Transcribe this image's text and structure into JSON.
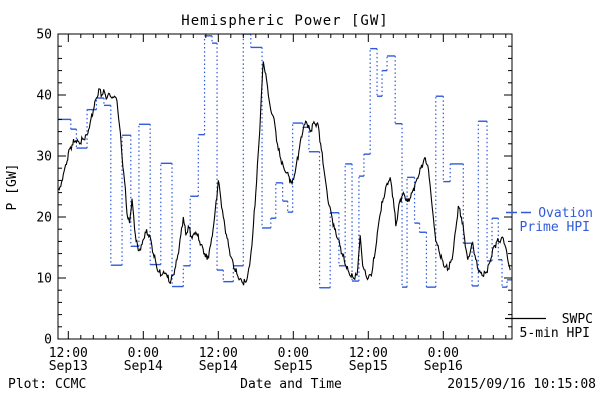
{
  "figure": {
    "title": "Hemispheric Power [GW]",
    "xlabel": "Date and Time",
    "ylabel": "P [GW]",
    "footer_left": "Plot: CCMC",
    "footer_right": "2015/09/16 10:15:08"
  },
  "legend": {
    "ovation_line1": "Ovation",
    "ovation_line2": "Prime HPI",
    "swpc_line1": "SWPC",
    "swpc_line2": "5-min HPI"
  },
  "colors": {
    "ovation": "#2f5bdb",
    "swpc": "#000000",
    "frame": "#000000",
    "background": "#ffffff"
  },
  "chart_data": {
    "type": "line",
    "title": "Hemispheric Power [GW]",
    "xlabel": "Date and Time",
    "ylabel": "P [GW]",
    "ylim": [
      0,
      50
    ],
    "y_major_ticks": [
      0,
      10,
      20,
      30,
      40,
      50
    ],
    "y_minor_step": 2,
    "x_unit": "hours since 2015-09-13 12:00",
    "xlim": [
      -1.6,
      71.0
    ],
    "x_major_ticks": [
      {
        "t": 0,
        "time": "12:00",
        "date": "Sep13"
      },
      {
        "t": 12,
        "time": "0:00",
        "date": "Sep14"
      },
      {
        "t": 24,
        "time": "12:00",
        "date": "Sep14"
      },
      {
        "t": 36,
        "time": "0:00",
        "date": "Sep15"
      },
      {
        "t": 48,
        "time": "12:00",
        "date": "Sep15"
      },
      {
        "t": 60,
        "time": "0:00",
        "date": "Sep16"
      }
    ],
    "x_minor_step_hours": 2,
    "grid": false,
    "legend_position": "right-outside",
    "series": [
      {
        "name": "Ovation Prime HPI",
        "style": "step-dotted",
        "color": "#2f5bdb",
        "steps_t0_t1_gw": [
          [
            -1.6,
            0.4,
            36.0
          ],
          [
            0.4,
            1.3,
            34.4
          ],
          [
            1.3,
            3.0,
            31.3
          ],
          [
            3.0,
            4.5,
            37.6
          ],
          [
            4.5,
            5.7,
            39.5
          ],
          [
            5.7,
            6.8,
            38.3
          ],
          [
            6.8,
            8.6,
            12.1
          ],
          [
            8.6,
            10.0,
            33.4
          ],
          [
            10.0,
            11.3,
            15.2
          ],
          [
            11.3,
            13.1,
            35.2
          ],
          [
            13.1,
            14.8,
            12.2
          ],
          [
            14.8,
            16.6,
            28.8
          ],
          [
            16.6,
            18.4,
            8.6
          ],
          [
            18.4,
            19.5,
            12.0
          ],
          [
            19.5,
            20.8,
            23.4
          ],
          [
            20.8,
            21.8,
            33.5
          ],
          [
            21.8,
            23.0,
            49.7
          ],
          [
            23.0,
            23.8,
            48.5
          ],
          [
            23.8,
            24.8,
            11.3
          ],
          [
            24.8,
            26.4,
            9.4
          ],
          [
            26.4,
            28.0,
            12.0
          ],
          [
            28.0,
            29.2,
            50.0
          ],
          [
            29.2,
            31.0,
            47.8
          ],
          [
            31.0,
            32.4,
            18.2
          ],
          [
            32.4,
            33.2,
            19.8
          ],
          [
            33.2,
            34.3,
            25.6
          ],
          [
            34.3,
            35.1,
            22.6
          ],
          [
            35.1,
            35.9,
            20.8
          ],
          [
            35.9,
            37.5,
            35.4
          ],
          [
            37.5,
            38.5,
            34.7
          ],
          [
            38.5,
            40.2,
            30.7
          ],
          [
            40.2,
            41.9,
            8.4
          ],
          [
            41.9,
            43.3,
            20.7
          ],
          [
            43.3,
            44.3,
            12.0
          ],
          [
            44.3,
            45.4,
            28.7
          ],
          [
            45.4,
            46.5,
            9.5
          ],
          [
            46.5,
            47.3,
            26.7
          ],
          [
            47.3,
            48.3,
            30.3
          ],
          [
            48.3,
            49.4,
            47.6
          ],
          [
            49.4,
            50.2,
            39.8
          ],
          [
            50.2,
            51.0,
            44.0
          ],
          [
            51.0,
            52.3,
            46.4
          ],
          [
            52.3,
            53.4,
            35.3
          ],
          [
            53.4,
            54.2,
            8.5
          ],
          [
            54.2,
            55.4,
            26.5
          ],
          [
            55.4,
            56.2,
            19.0
          ],
          [
            56.2,
            57.3,
            17.5
          ],
          [
            57.3,
            58.8,
            8.5
          ],
          [
            58.8,
            60.0,
            39.8
          ],
          [
            60.0,
            61.1,
            25.8
          ],
          [
            61.1,
            63.2,
            28.7
          ],
          [
            63.2,
            64.6,
            15.7
          ],
          [
            64.6,
            65.6,
            8.7
          ],
          [
            65.6,
            67.0,
            35.7
          ],
          [
            67.0,
            67.8,
            12.8
          ],
          [
            67.8,
            68.8,
            19.8
          ],
          [
            68.8,
            69.4,
            13.0
          ],
          [
            69.4,
            70.2,
            8.5
          ],
          [
            70.2,
            71.0,
            9.7
          ]
        ]
      },
      {
        "name": "SWPC 5-min HPI",
        "style": "solid",
        "color": "#000000",
        "points_t_gw": [
          [
            -1.6,
            24.6
          ],
          [
            -1.2,
            25.0
          ],
          [
            -0.8,
            27.0
          ],
          [
            -0.3,
            28.6
          ],
          [
            0,
            30.5
          ],
          [
            0.6,
            31.8
          ],
          [
            1.2,
            32.5
          ],
          [
            1.8,
            32.0
          ],
          [
            2.4,
            32.8
          ],
          [
            3.0,
            33.5
          ],
          [
            3.5,
            35.5
          ],
          [
            4.0,
            37.5
          ],
          [
            4.5,
            39.5
          ],
          [
            5.0,
            41.0
          ],
          [
            5.4,
            40.0
          ],
          [
            5.8,
            40.5
          ],
          [
            6.2,
            39.5
          ],
          [
            6.6,
            40.2
          ],
          [
            7.0,
            39.5
          ],
          [
            7.4,
            39.8
          ],
          [
            7.8,
            39.0
          ],
          [
            8.2,
            35.0
          ],
          [
            8.6,
            30.0
          ],
          [
            9.0,
            26.0
          ],
          [
            9.4,
            20.5
          ],
          [
            9.8,
            19.0
          ],
          [
            10.2,
            23.0
          ],
          [
            10.6,
            18.0
          ],
          [
            11.2,
            14.5
          ],
          [
            11.8,
            15.5
          ],
          [
            12.3,
            17.5
          ],
          [
            13.0,
            17.0
          ],
          [
            13.6,
            14.0
          ],
          [
            14.4,
            11.0
          ],
          [
            15.0,
            10.5
          ],
          [
            15.6,
            10.8
          ],
          [
            16.2,
            9.2
          ],
          [
            16.8,
            10.5
          ],
          [
            17.4,
            13.0
          ],
          [
            18.0,
            17.0
          ],
          [
            18.4,
            20.0
          ],
          [
            18.8,
            17.0
          ],
          [
            19.2,
            18.5
          ],
          [
            19.8,
            16.5
          ],
          [
            20.4,
            17.5
          ],
          [
            21.0,
            16.0
          ],
          [
            21.8,
            14.0
          ],
          [
            22.2,
            13.0
          ],
          [
            22.8,
            15.5
          ],
          [
            23.4,
            20.0
          ],
          [
            24.0,
            26.0
          ],
          [
            24.4,
            23.0
          ],
          [
            24.8,
            20.0
          ],
          [
            25.4,
            16.5
          ],
          [
            26.0,
            13.5
          ],
          [
            26.6,
            11.5
          ],
          [
            27.2,
            10.0
          ],
          [
            27.8,
            9.3
          ],
          [
            28.4,
            9.3
          ],
          [
            29.0,
            12.0
          ],
          [
            29.5,
            17.0
          ],
          [
            30.0,
            24.0
          ],
          [
            30.5,
            32.0
          ],
          [
            30.9,
            40.0
          ],
          [
            31.2,
            45.5
          ],
          [
            31.6,
            43.5
          ],
          [
            32.0,
            40.0
          ],
          [
            32.4,
            37.5
          ],
          [
            32.8,
            36.5
          ],
          [
            33.2,
            34.0
          ],
          [
            33.6,
            31.0
          ],
          [
            34.0,
            29.5
          ],
          [
            34.5,
            28.0
          ],
          [
            35.0,
            27.3
          ],
          [
            35.8,
            25.5
          ],
          [
            36.4,
            28.0
          ],
          [
            37.0,
            31.5
          ],
          [
            37.6,
            34.5
          ],
          [
            38.1,
            35.6
          ],
          [
            38.7,
            34.0
          ],
          [
            39.3,
            35.6
          ],
          [
            40.0,
            35.0
          ],
          [
            40.5,
            31.0
          ],
          [
            41.0,
            27.0
          ],
          [
            41.5,
            23.0
          ],
          [
            42.0,
            21.0
          ],
          [
            42.6,
            18.0
          ],
          [
            43.2,
            16.3
          ],
          [
            43.8,
            14.0
          ],
          [
            44.4,
            12.0
          ],
          [
            45.0,
            10.5
          ],
          [
            45.6,
            10.0
          ],
          [
            46.2,
            10.5
          ],
          [
            46.7,
            17.0
          ],
          [
            47.1,
            12.0
          ],
          [
            47.6,
            10.5
          ],
          [
            48.0,
            10.0
          ],
          [
            48.6,
            11.0
          ],
          [
            49.2,
            15.0
          ],
          [
            49.8,
            20.0
          ],
          [
            50.4,
            23.0
          ],
          [
            51.0,
            25.5
          ],
          [
            51.5,
            26.5
          ],
          [
            52.0,
            23.0
          ],
          [
            52.4,
            18.5
          ],
          [
            53.0,
            22.5
          ],
          [
            53.6,
            24.0
          ],
          [
            54.3,
            22.5
          ],
          [
            55.0,
            24.0
          ],
          [
            55.7,
            26.0
          ],
          [
            56.4,
            28.0
          ],
          [
            57.0,
            29.7
          ],
          [
            57.5,
            28.5
          ],
          [
            58.0,
            24.0
          ],
          [
            58.4,
            20.0
          ],
          [
            58.8,
            16.0
          ],
          [
            59.3,
            14.5
          ],
          [
            59.8,
            13.0
          ],
          [
            60.3,
            11.8
          ],
          [
            60.8,
            11.5
          ],
          [
            61.4,
            13.0
          ],
          [
            62.0,
            18.0
          ],
          [
            62.4,
            21.8
          ],
          [
            62.9,
            20.0
          ],
          [
            63.4,
            16.5
          ],
          [
            63.9,
            13.0
          ],
          [
            64.3,
            14.2
          ],
          [
            64.7,
            15.8
          ],
          [
            65.2,
            13.0
          ],
          [
            65.7,
            11.0
          ],
          [
            66.2,
            10.4
          ],
          [
            66.8,
            10.8
          ],
          [
            67.4,
            12.5
          ],
          [
            68.0,
            15.0
          ],
          [
            68.6,
            16.0
          ],
          [
            69.2,
            16.2
          ],
          [
            69.6,
            16.5
          ],
          [
            70.0,
            15.0
          ],
          [
            70.4,
            12.5
          ],
          [
            70.7,
            11.3
          ]
        ]
      }
    ]
  }
}
